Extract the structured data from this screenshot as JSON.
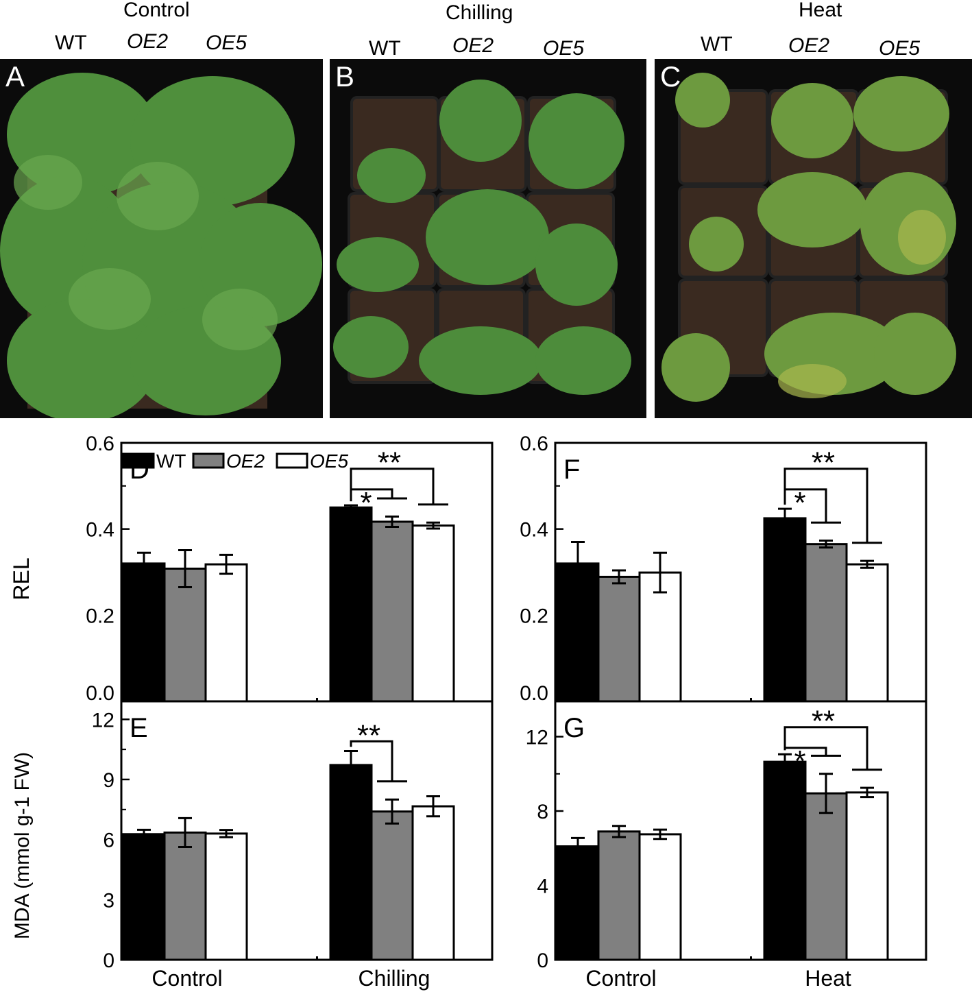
{
  "photos": [
    {
      "panel": "A",
      "condition": "Control",
      "genotypes": [
        "WT",
        "OE2",
        "OE5"
      ]
    },
    {
      "panel": "B",
      "condition": "Chilling",
      "genotypes": [
        "WT",
        "OE2",
        "OE5"
      ]
    },
    {
      "panel": "C",
      "condition": "Heat",
      "genotypes": [
        "WT",
        "OE2",
        "OE5"
      ]
    }
  ],
  "colors": {
    "WT": "#000000",
    "OE2": "#808080",
    "OE5": "#ffffff",
    "leaf": "#4f8f3c",
    "soil": "#3a2a20"
  },
  "chart_data": [
    {
      "panel": "D",
      "type": "bar",
      "ylabel": "REL",
      "categories": [
        "Control",
        "Chilling"
      ],
      "ylim": [
        0,
        0.6
      ],
      "yticks": [
        "0.0",
        "0.2",
        "0.4",
        "0.6"
      ],
      "legend": [
        "WT",
        "OE2",
        "OE5"
      ],
      "series": [
        {
          "name": "WT",
          "values": [
            0.32,
            0.45
          ],
          "errors": [
            0.025,
            0.005
          ]
        },
        {
          "name": "OE2",
          "values": [
            0.308,
            0.417
          ],
          "errors": [
            0.043,
            0.012
          ]
        },
        {
          "name": "OE5",
          "values": [
            0.318,
            0.408
          ],
          "errors": [
            0.022,
            0.007
          ]
        }
      ],
      "significance": [
        {
          "category": "Chilling",
          "compare": [
            "WT",
            "OE2"
          ],
          "label": "*"
        },
        {
          "category": "Chilling",
          "compare": [
            "WT",
            "OE5"
          ],
          "label": "**"
        }
      ]
    },
    {
      "panel": "E",
      "type": "bar",
      "ylabel": "MDA (mmol g-1 FW)",
      "categories": [
        "Control",
        "Chilling"
      ],
      "ylim": [
        0,
        12.9
      ],
      "yticks": [
        "0",
        "3",
        "6",
        "9",
        "12"
      ],
      "series": [
        {
          "name": "WT",
          "values": [
            6.27,
            9.72
          ],
          "errors": [
            0.22,
            0.7
          ]
        },
        {
          "name": "OE2",
          "values": [
            6.35,
            7.4
          ],
          "errors": [
            0.72,
            0.6
          ]
        },
        {
          "name": "OE5",
          "values": [
            6.3,
            7.66
          ],
          "errors": [
            0.18,
            0.5
          ]
        }
      ],
      "significance": [
        {
          "category": "Chilling",
          "compare": [
            "WT",
            "OE2"
          ],
          "label": "**"
        }
      ]
    },
    {
      "panel": "F",
      "type": "bar",
      "ylabel": "",
      "categories": [
        "Control",
        "Heat"
      ],
      "ylim": [
        0,
        0.6
      ],
      "yticks": [
        "0.0",
        "0.2",
        "0.4",
        "0.6"
      ],
      "series": [
        {
          "name": "WT",
          "values": [
            0.32,
            0.425
          ],
          "errors": [
            0.05,
            0.022
          ]
        },
        {
          "name": "OE2",
          "values": [
            0.289,
            0.365
          ],
          "errors": [
            0.015,
            0.008
          ]
        },
        {
          "name": "OE5",
          "values": [
            0.299,
            0.318
          ],
          "errors": [
            0.046,
            0.008
          ]
        }
      ],
      "significance": [
        {
          "category": "Heat",
          "compare": [
            "WT",
            "OE2"
          ],
          "label": "*"
        },
        {
          "category": "Heat",
          "compare": [
            "WT",
            "OE5"
          ],
          "label": "**"
        }
      ]
    },
    {
      "panel": "G",
      "type": "bar",
      "ylabel": "",
      "categories": [
        "Control",
        "Heat"
      ],
      "ylim": [
        0,
        13.9
      ],
      "yticks": [
        "0",
        "4",
        "8",
        "12"
      ],
      "series": [
        {
          "name": "WT",
          "values": [
            6.1,
            10.65
          ],
          "errors": [
            0.45,
            0.4
          ]
        },
        {
          "name": "OE2",
          "values": [
            6.9,
            8.95
          ],
          "errors": [
            0.3,
            1.05
          ]
        },
        {
          "name": "OE5",
          "values": [
            6.75,
            9.0
          ],
          "errors": [
            0.25,
            0.25
          ]
        }
      ],
      "significance": [
        {
          "category": "Heat",
          "compare": [
            "WT",
            "OE2"
          ],
          "label": "*"
        },
        {
          "category": "Heat",
          "compare": [
            "WT",
            "OE5"
          ],
          "label": "**"
        }
      ]
    }
  ]
}
